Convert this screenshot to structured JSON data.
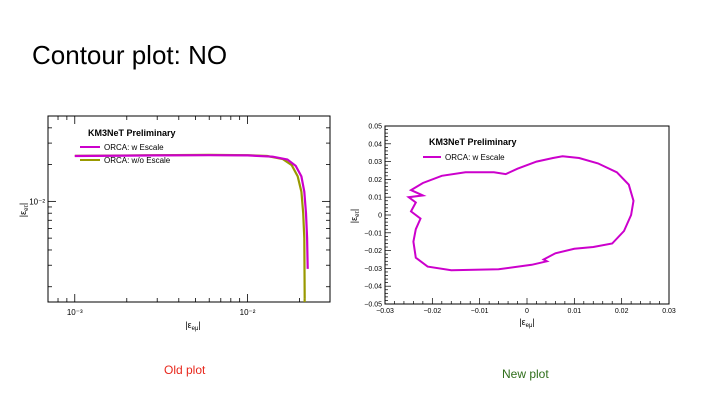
{
  "slide": {
    "title": "Contour plot: NO",
    "captions": {
      "old": "Old plot",
      "new": "New plot"
    },
    "caption_colors": {
      "old": "#e8271c",
      "new": "#2f6e1a"
    }
  },
  "chart_data": [
    {
      "type": "line",
      "label_box": "KM3NeT Preliminary",
      "xlabel": "|ε_eμ|",
      "ylabel": "|ε_eτ|",
      "xscale": "log",
      "yscale": "log",
      "xlim": [
        0.0007,
        0.03
      ],
      "ylim": [
        0.0015,
        0.05
      ],
      "x_ticks": [
        "10⁻³",
        "10⁻²"
      ],
      "y_ticks": [
        "10⁻²"
      ],
      "legend_position": "top-left",
      "series": [
        {
          "name": "ORCA: w Escale",
          "color": "#cc00cc",
          "points": [
            [
              0.001,
              0.0235
            ],
            [
              0.003,
              0.0238
            ],
            [
              0.006,
              0.0239
            ],
            [
              0.01,
              0.0238
            ],
            [
              0.014,
              0.0232
            ],
            [
              0.017,
              0.022
            ],
            [
              0.019,
              0.0195
            ],
            [
              0.0205,
              0.016
            ],
            [
              0.0213,
              0.012
            ],
            [
              0.0218,
              0.008
            ],
            [
              0.0221,
              0.005
            ],
            [
              0.0223,
              0.0028
            ]
          ]
        },
        {
          "name": "ORCA: w/o Escale",
          "color": "#999900",
          "points": [
            [
              0.001,
              0.0236
            ],
            [
              0.003,
              0.0239
            ],
            [
              0.006,
              0.024
            ],
            [
              0.01,
              0.0239
            ],
            [
              0.013,
              0.0235
            ],
            [
              0.016,
              0.0222
            ],
            [
              0.018,
              0.0198
            ],
            [
              0.0195,
              0.016
            ],
            [
              0.0205,
              0.012
            ],
            [
              0.021,
              0.008
            ],
            [
              0.0213,
              0.005
            ],
            [
              0.0214,
              0.0016
            ]
          ]
        }
      ]
    },
    {
      "type": "line",
      "label_box": "KM3NeT Preliminary",
      "xlabel": "|ε_eμ|",
      "ylabel": "|ε_eτ|",
      "xlim": [
        -0.03,
        0.03
      ],
      "ylim": [
        -0.05,
        0.05
      ],
      "x_ticks": [
        "−0.03",
        "−0.02",
        "−0.01",
        "0",
        "0.01",
        "0.02",
        "0.03"
      ],
      "y_ticks": [
        "−0.05",
        "−0.04",
        "−0.03",
        "−0.02",
        "−0.01",
        "0",
        "0.01",
        "0.02",
        "0.03",
        "0.04",
        "0.05"
      ],
      "legend_position": "top-left",
      "series": [
        {
          "name": "ORCA: w Escale",
          "color": "#cc00cc",
          "closed": true,
          "points": [
            [
              0.0075,
              0.033
            ],
            [
              0.011,
              0.032
            ],
            [
              0.015,
              0.029
            ],
            [
              0.019,
              0.024
            ],
            [
              0.0215,
              0.017
            ],
            [
              0.0225,
              0.008
            ],
            [
              0.022,
              0.0
            ],
            [
              0.0205,
              -0.009
            ],
            [
              0.018,
              -0.016
            ],
            [
              0.014,
              -0.018
            ],
            [
              0.01,
              -0.019
            ],
            [
              0.006,
              -0.0215
            ],
            [
              0.0035,
              -0.025
            ],
            [
              0.0042,
              -0.026
            ],
            [
              0.001,
              -0.028
            ],
            [
              -0.006,
              -0.0305
            ],
            [
              -0.016,
              -0.031
            ],
            [
              -0.021,
              -0.029
            ],
            [
              -0.0235,
              -0.024
            ],
            [
              -0.024,
              -0.015
            ],
            [
              -0.0235,
              -0.008
            ],
            [
              -0.0225,
              -0.002
            ],
            [
              -0.0245,
              0.002
            ],
            [
              -0.0235,
              0.007
            ],
            [
              -0.025,
              0.01
            ],
            [
              -0.022,
              0.011
            ],
            [
              -0.0245,
              0.014
            ],
            [
              -0.022,
              0.018
            ],
            [
              -0.018,
              0.022
            ],
            [
              -0.013,
              0.024
            ],
            [
              -0.007,
              0.024
            ],
            [
              -0.0045,
              0.023
            ],
            [
              -0.002,
              0.026
            ],
            [
              0.002,
              0.03
            ],
            [
              0.0055,
              0.032
            ],
            [
              0.0075,
              0.033
            ]
          ]
        }
      ]
    }
  ]
}
